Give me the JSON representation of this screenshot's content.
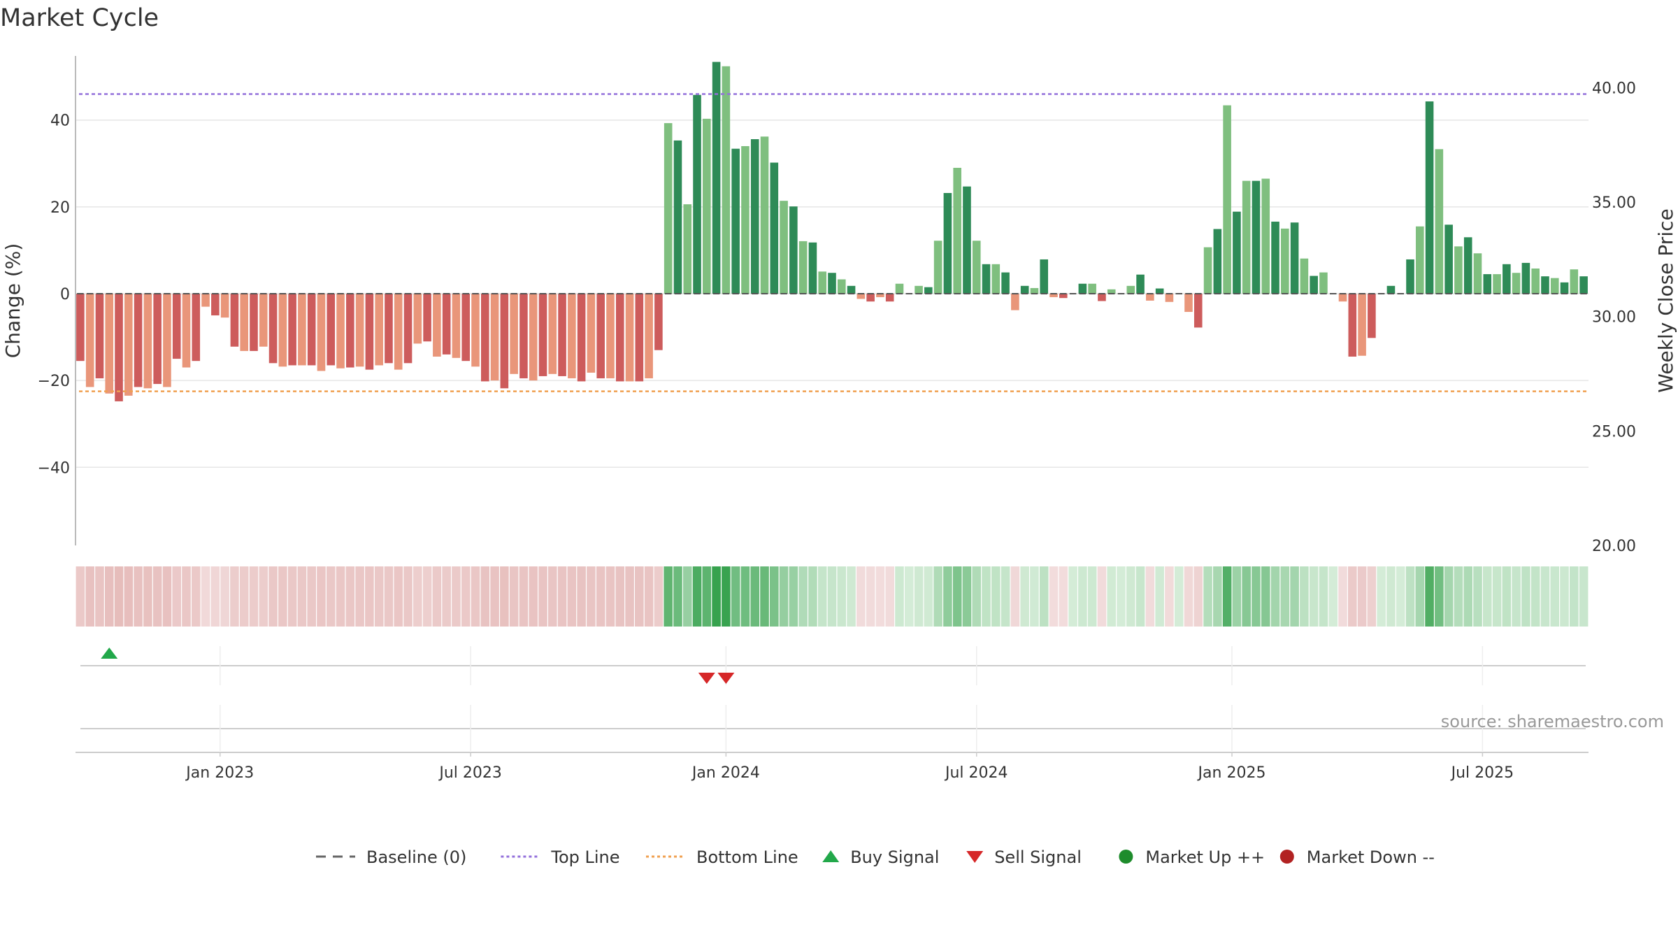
{
  "chart_data": {
    "type": "bar",
    "title": "Market Cycle",
    "ylabel_left": "Change (%)",
    "ylabel_right": "Weekly Close Price",
    "ylim_left": [
      -58,
      58
    ],
    "ylim_right": [
      20,
      42
    ],
    "yticks_left": [
      "40",
      "20",
      "0",
      "−40"
    ],
    "yticks_right": [
      "40.00",
      "35.00",
      "30.00",
      "25.00",
      "20.00"
    ],
    "top_line": 46,
    "bottom_line": -22.5,
    "x_tick_labels": [
      "Jan 2023",
      "Jul 2023",
      "Jan 2024",
      "Jul 2024",
      "Jan 2025",
      "Jul 2025"
    ],
    "x_tick_week_index": [
      15,
      41,
      67.5,
      93.5,
      120,
      146
    ],
    "values": [
      -15.5,
      -21.5,
      -19.5,
      -23,
      -24.8,
      -23.5,
      -21.5,
      -21.8,
      -20.8,
      -21.5,
      -15,
      -17,
      -15.5,
      -3,
      -5,
      -5.5,
      -12.2,
      -13.2,
      -13.2,
      -12.2,
      -16,
      -16.8,
      -16.5,
      -16.5,
      -16.5,
      -17.8,
      -16.5,
      -17.2,
      -17,
      -16.8,
      -17.5,
      -16.5,
      -16,
      -17.5,
      -16,
      -11.5,
      -11,
      -14.5,
      -14,
      -14.8,
      -15.5,
      -16.8,
      -20.2,
      -20,
      -21.8,
      -18.5,
      -19.5,
      -20,
      -19,
      -18.5,
      -19,
      -19.5,
      -20.2,
      -18.2,
      -19.5,
      -19.5,
      -20.2,
      -20.2,
      -20.2,
      -19.5,
      -13,
      39.3,
      35.3,
      20.6,
      45.8,
      40.3,
      53.4,
      52.4,
      33.4,
      34,
      35.6,
      36.2,
      30.2,
      21.4,
      20.1,
      12.1,
      11.8,
      5.1,
      4.8,
      3.3,
      1.8,
      -1.2,
      -1.8,
      -0.8,
      -1.8,
      2.3,
      0,
      1.8,
      1.5,
      12.2,
      23.2,
      29,
      24.7,
      12.2,
      6.8,
      6.8,
      4.9,
      -3.8,
      1.8,
      1.3,
      7.9,
      -0.8,
      -1,
      0,
      2.3,
      2.3,
      -1.7,
      1,
      0,
      1.8,
      4.4,
      -1.6,
      1.2,
      -1.9,
      0,
      -4.2,
      -7.8,
      10.7,
      14.9,
      43.4,
      18.9,
      26,
      26,
      26.5,
      16.6,
      15,
      16.4,
      8.1,
      4.1,
      4.9,
      0,
      -1.8,
      -14.5,
      -14.3,
      -10.2,
      0,
      1.8,
      0,
      7.9,
      15.5,
      44.3,
      33.3,
      15.9,
      10.9,
      13,
      9.3,
      4.5,
      4.5,
      6.8,
      4.8,
      7.1,
      5.8,
      4,
      3.6,
      2.6,
      5.6,
      4
    ],
    "series": [
      {
        "name": "Baseline (0)",
        "color": "#666666",
        "style": "dashed"
      },
      {
        "name": "Top Line",
        "color": "#9370db",
        "style": "dotted"
      },
      {
        "name": "Bottom Line",
        "color": "#f0a050",
        "style": "dotted"
      },
      {
        "name": "Buy Signal",
        "color": "#22a84a",
        "marker": "triangle-up"
      },
      {
        "name": "Sell Signal",
        "color": "#d62728",
        "marker": "triangle-down"
      },
      {
        "name": "Market Up ++",
        "color": "#1e8c2c",
        "marker": "circle"
      },
      {
        "name": "Market Down --",
        "color": "#b22222",
        "marker": "circle"
      }
    ],
    "buy_signals": [
      3
    ],
    "sell_signals": [
      65.5,
      67.5
    ],
    "source": "source: sharemaestro.com",
    "colors": {
      "pos_dark": "#2e8b57",
      "pos_light": "#7fbf7f",
      "neg_dark": "#cd5c5c",
      "neg_light": "#e9967a",
      "grid": "#e6e6e6",
      "axis": "#bbbbbb",
      "text": "#333333"
    }
  }
}
